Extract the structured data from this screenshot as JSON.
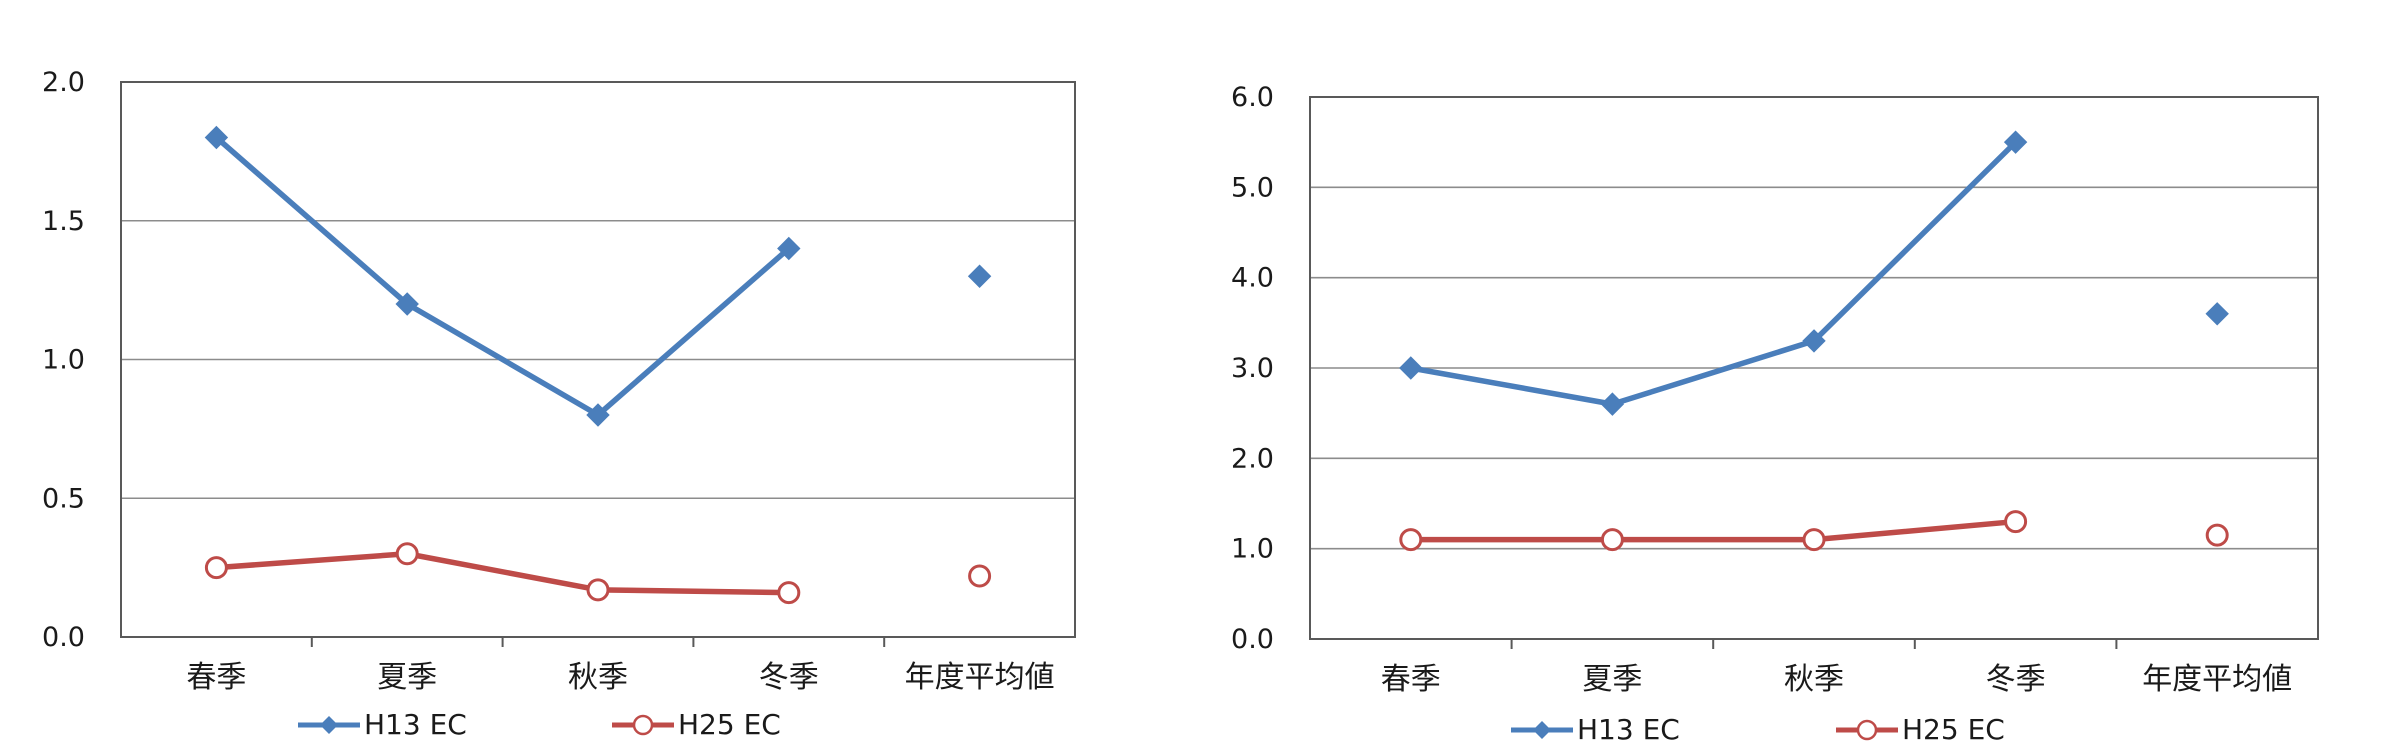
{
  "chart_data": [
    {
      "type": "line",
      "title": "",
      "xlabel": "",
      "ylabel": "",
      "categories": [
        "春季",
        "夏季",
        "秋季",
        "冬季",
        "年度平均値"
      ],
      "ylim": [
        0,
        2.0
      ],
      "yticks": [
        "0.0",
        "0.5",
        "1.0",
        "1.5",
        "2.0"
      ],
      "grid": true,
      "legend_position": "bottom",
      "series": [
        {
          "name": "H13 EC",
          "values": [
            1.8,
            1.2,
            0.8,
            1.4,
            1.3
          ],
          "color": "#4a7ebb",
          "marker": "diamond"
        },
        {
          "name": "H25 EC",
          "values": [
            0.25,
            0.3,
            0.17,
            0.16,
            0.22
          ],
          "color": "#be4b48",
          "marker": "open-circle"
        }
      ]
    },
    {
      "type": "line",
      "title": "",
      "xlabel": "",
      "ylabel": "",
      "categories": [
        "春季",
        "夏季",
        "秋季",
        "冬季",
        "年度平均値"
      ],
      "ylim": [
        0,
        6.0
      ],
      "yticks": [
        "0.0",
        "1.0",
        "2.0",
        "3.0",
        "4.0",
        "5.0",
        "6.0"
      ],
      "grid": true,
      "legend_position": "bottom",
      "series": [
        {
          "name": "H13 EC",
          "values": [
            3.0,
            2.6,
            3.3,
            5.5,
            3.6
          ],
          "color": "#4a7ebb",
          "marker": "diamond"
        },
        {
          "name": "H25 EC",
          "values": [
            1.1,
            1.1,
            1.1,
            1.3,
            1.15
          ],
          "color": "#be4b48",
          "marker": "open-circle"
        }
      ]
    }
  ]
}
